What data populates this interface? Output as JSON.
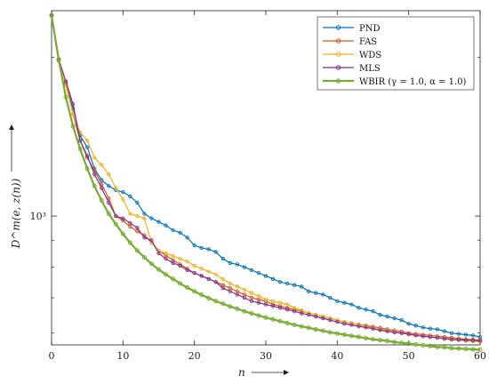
{
  "chart_data": {
    "type": "line",
    "xlabel": "n",
    "ylabel": "D^m(e, z(n))",
    "yscale": "log",
    "xlim": [
      0,
      60
    ],
    "ylim": [
      570,
      2450
    ],
    "x_ticks": [
      0,
      10,
      20,
      30,
      40,
      50,
      60
    ],
    "x_tick_labels": [
      "0",
      "10",
      "20",
      "30",
      "40",
      "50",
      "60"
    ],
    "y_ticks": [
      1000
    ],
    "y_tick_labels": [
      "10³"
    ],
    "legend_position": "top-right",
    "grid": false,
    "x": [
      0,
      1,
      2,
      3,
      4,
      5,
      6,
      7,
      8,
      9,
      10,
      11,
      12,
      13,
      14,
      15,
      16,
      17,
      18,
      19,
      20,
      21,
      22,
      23,
      24,
      25,
      26,
      27,
      28,
      29,
      30,
      31,
      32,
      33,
      34,
      35,
      36,
      37,
      38,
      39,
      40,
      41,
      42,
      43,
      44,
      45,
      46,
      47,
      48,
      49,
      50,
      51,
      52,
      53,
      54,
      55,
      56,
      57,
      58,
      59,
      60
    ],
    "series": [
      {
        "name": "PND",
        "color": "#0072BD",
        "marker": "circle",
        "values": [
          2400,
          1980,
          1780,
          1600,
          1420,
          1350,
          1230,
          1170,
          1140,
          1120,
          1110,
          1090,
          1060,
          1010,
          990,
          975,
          960,
          940,
          930,
          910,
          880,
          870,
          865,
          855,
          830,
          815,
          810,
          800,
          790,
          780,
          770,
          760,
          750,
          745,
          740,
          735,
          720,
          715,
          710,
          700,
          690,
          685,
          680,
          670,
          665,
          660,
          650,
          645,
          640,
          635,
          625,
          620,
          615,
          612,
          610,
          605,
          600,
          598,
          596,
          594,
          590
        ]
      },
      {
        "name": "FAS",
        "color": "#D95319",
        "marker": "circle",
        "values": [
          2400,
          1970,
          1790,
          1560,
          1390,
          1290,
          1220,
          1150,
          1080,
          1000,
          980,
          955,
          935,
          920,
          890,
          860,
          842,
          825,
          810,
          795,
          780,
          770,
          760,
          750,
          740,
          730,
          720,
          710,
          700,
          695,
          690,
          680,
          675,
          670,
          665,
          660,
          655,
          650,
          645,
          640,
          635,
          630,
          627,
          623,
          620,
          617,
          614,
          610,
          607,
          604,
          600,
          598,
          596,
          594,
          592,
          590,
          588,
          586,
          584,
          583,
          582
        ]
      },
      {
        "name": "WDS",
        "color": "#EDB120",
        "marker": "circle",
        "values": [
          2400,
          1980,
          1770,
          1560,
          1440,
          1390,
          1290,
          1250,
          1200,
          1130,
          1075,
          1010,
          1000,
          990,
          890,
          860,
          850,
          840,
          830,
          820,
          805,
          795,
          785,
          775,
          760,
          745,
          735,
          725,
          715,
          705,
          695,
          690,
          685,
          680,
          670,
          662,
          655,
          650,
          645,
          640,
          635,
          630,
          627,
          622,
          618,
          613,
          610,
          607,
          603,
          600,
          597,
          595,
          592,
          590,
          588,
          585,
          583,
          582,
          580,
          579,
          578
        ]
      },
      {
        "name": "MLS",
        "color": "#7E2F8E",
        "marker": "circle",
        "values": [
          2400,
          1985,
          1800,
          1630,
          1390,
          1300,
          1200,
          1130,
          1060,
          1000,
          990,
          970,
          950,
          910,
          900,
          850,
          830,
          815,
          805,
          790,
          780,
          770,
          760,
          750,
          730,
          720,
          710,
          700,
          690,
          685,
          680,
          675,
          670,
          665,
          660,
          654,
          650,
          645,
          640,
          635,
          630,
          625,
          622,
          618,
          615,
          612,
          608,
          605,
          602,
          600,
          597,
          594,
          592,
          590,
          588,
          586,
          584,
          583,
          582,
          581,
          580
        ]
      },
      {
        "name": "WBIR (γ = 1.0, α = 1.0)",
        "color": "#77AC30",
        "marker": "circle",
        "values": [
          2400,
          1980,
          1680,
          1480,
          1340,
          1230,
          1140,
          1070,
          1010,
          965,
          925,
          890,
          860,
          835,
          812,
          792,
          775,
          760,
          745,
          732,
          720,
          709,
          699,
          690,
          682,
          674,
          667,
          660,
          654,
          648,
          642,
          637,
          632,
          627,
          622,
          618,
          614,
          610,
          606,
          602,
          599,
          596,
          593,
          590,
          587,
          584,
          582,
          580,
          577,
          575,
          573,
          571,
          569,
          567,
          565,
          564,
          562,
          561,
          560,
          559,
          558
        ]
      }
    ]
  }
}
